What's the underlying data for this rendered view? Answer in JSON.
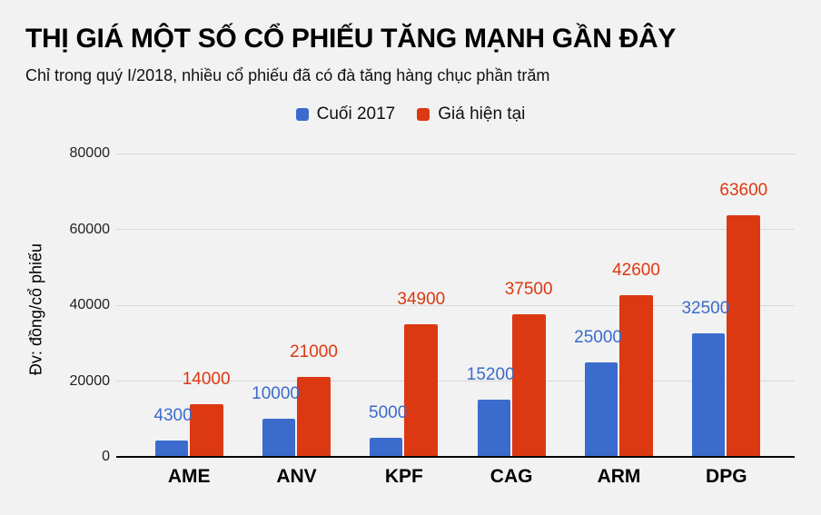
{
  "background_color": "#f2f2f2",
  "header": {
    "title": "THỊ GIÁ MỘT SỐ CỔ PHIẾU TĂNG MẠNH GẦN ĐÂY",
    "subtitle": "Chỉ trong quý I/2018, nhiều cổ phiếu đã có đà tăng hàng chục phần trăm"
  },
  "legend": [
    {
      "label": "Cuối 2017",
      "color": "#3b6bcc"
    },
    {
      "label": "Giá hiện tại",
      "color": "#dc3912"
    }
  ],
  "chart_data": {
    "type": "bar",
    "categories": [
      "AME",
      "ANV",
      "KPF",
      "CAG",
      "ARM",
      "DPG"
    ],
    "series": [
      {
        "name": "Cuối 2017",
        "color": "#3b6bcc",
        "values": [
          4300,
          10000,
          5000,
          15200,
          25000,
          32500
        ]
      },
      {
        "name": "Giá hiện tại",
        "color": "#dc3912",
        "values": [
          14000,
          21000,
          34900,
          37500,
          42600,
          63600
        ]
      }
    ],
    "title": "THỊ GIÁ MỘT SỐ CỔ PHIẾU TĂNG MẠNH GẦN ĐÂY",
    "xlabel": "",
    "ylabel": "Đv: đồng/cổ phiếu",
    "yticks": [
      0,
      20000,
      40000,
      60000,
      80000
    ],
    "ylim": [
      0,
      80000
    ],
    "grid": true,
    "legend_position": "top",
    "data_labels": true,
    "axis_color": "#000000",
    "gridline_color": "#d9d9d9"
  }
}
